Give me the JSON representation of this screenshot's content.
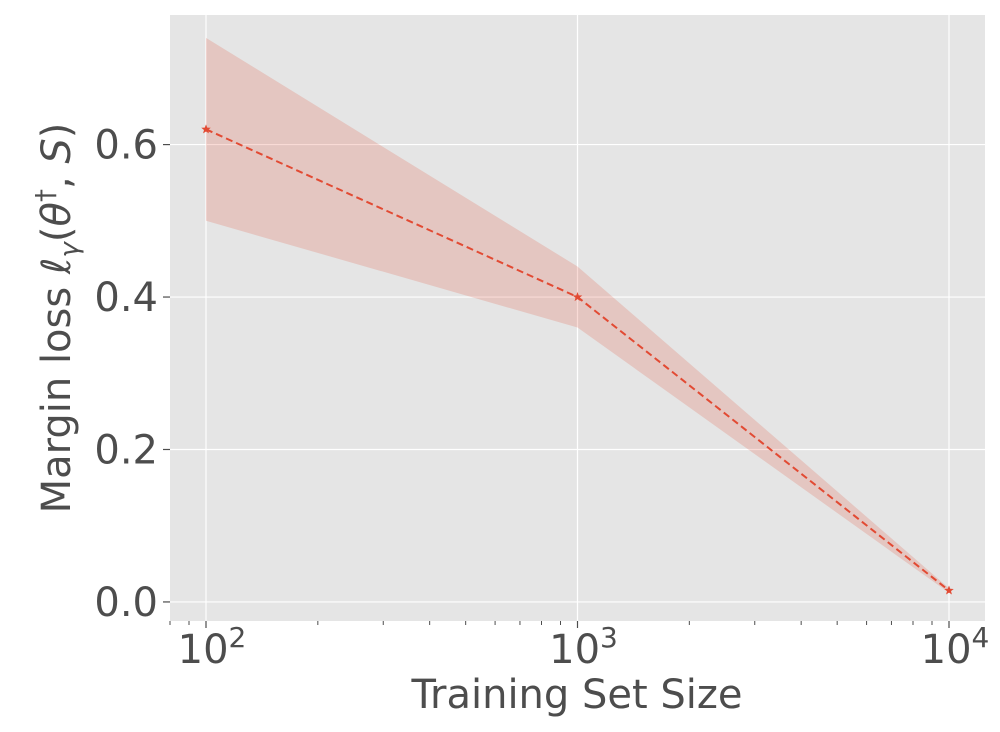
{
  "chart_data": {
    "type": "line",
    "xlabel": "Training Set Size",
    "ylabel": {
      "prefix": "Margin loss ",
      "ell": "ℓ",
      "gamma": "γ",
      "open": "(",
      "theta": "θ",
      "dagger": "†",
      "rest": ", ",
      "set": "S",
      "close": ")"
    },
    "x_scale": "log",
    "xlim": [
      80,
      12500
    ],
    "ylim": [
      -0.025,
      0.77
    ],
    "x_ticks": [
      {
        "value": 100,
        "base": "10",
        "exp": "2"
      },
      {
        "value": 1000,
        "base": "10",
        "exp": "3"
      },
      {
        "value": 10000,
        "base": "10",
        "exp": "4"
      }
    ],
    "y_ticks": [
      {
        "value": 0.0,
        "label": "0.0"
      },
      {
        "value": 0.2,
        "label": "0.2"
      },
      {
        "value": 0.4,
        "label": "0.4"
      },
      {
        "value": 0.6,
        "label": "0.6"
      }
    ],
    "grid": true,
    "series": [
      {
        "x": [
          100,
          1000,
          10000
        ],
        "y": [
          0.62,
          0.4,
          0.015
        ],
        "y_lower": [
          0.5,
          0.36,
          0.012
        ],
        "y_upper": [
          0.74,
          0.44,
          0.018
        ],
        "color": "#e24a33",
        "band_color": "#e24a33",
        "line_style": "dashed",
        "marker": "star"
      }
    ],
    "colors": {
      "background": "#e5e5e5",
      "grid": "#ffffff",
      "text": "#4d4d4d"
    }
  }
}
